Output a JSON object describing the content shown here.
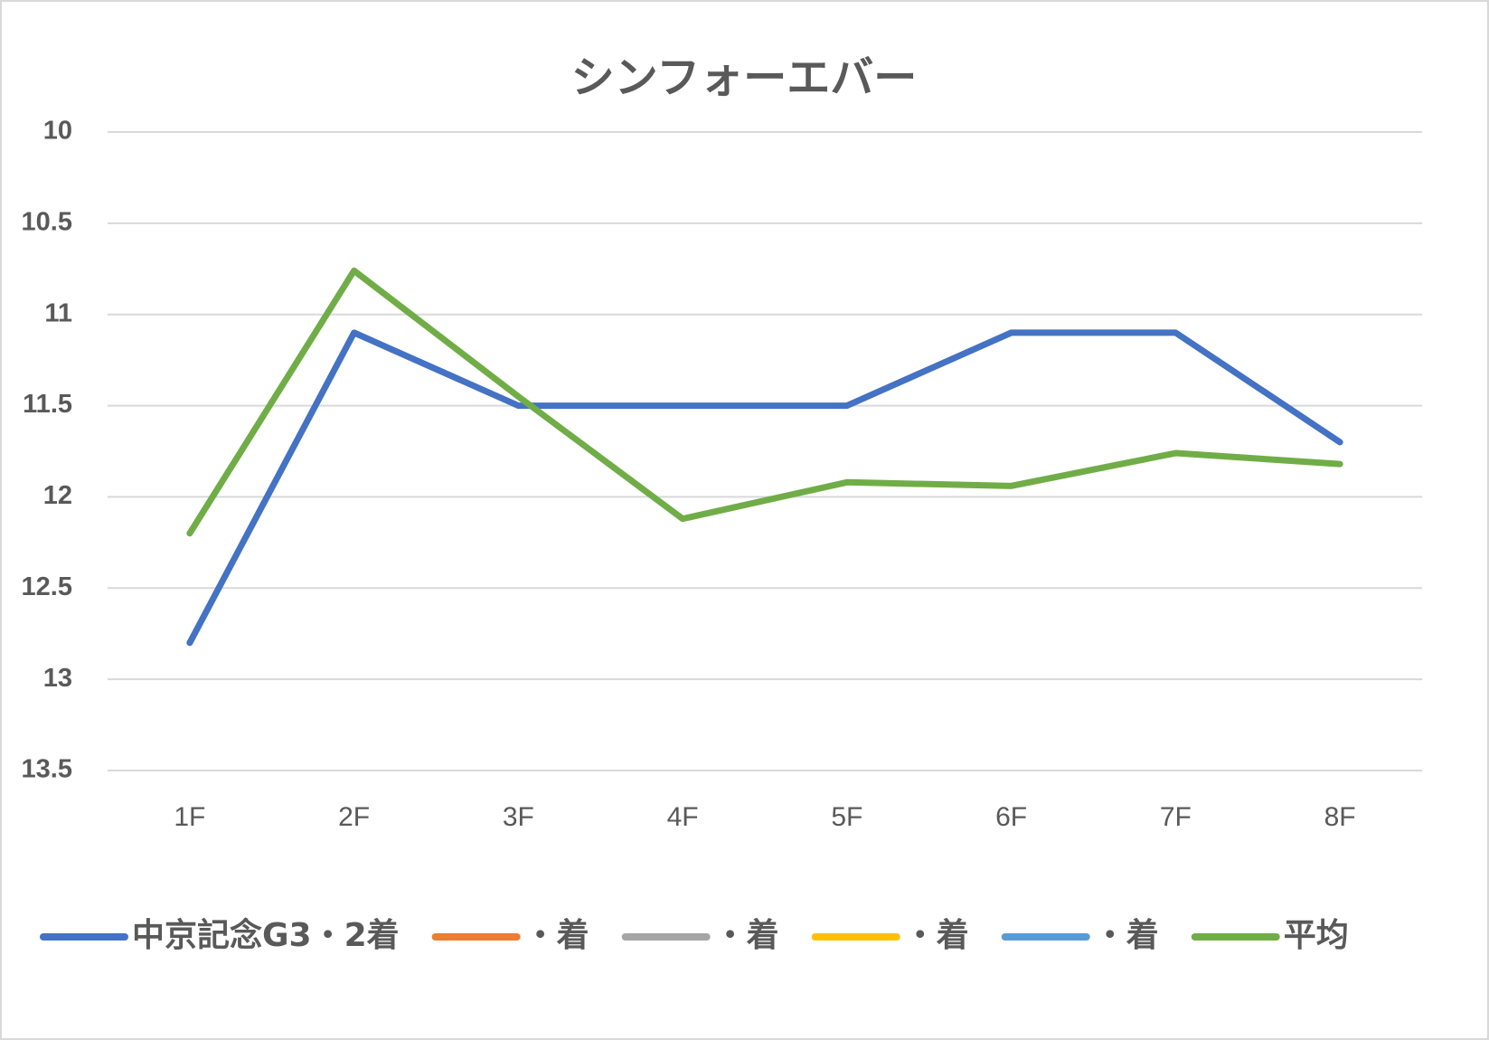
{
  "chart_data": {
    "type": "line",
    "title": "シンフォーエバー",
    "categories": [
      "1F",
      "2F",
      "3F",
      "4F",
      "5F",
      "6F",
      "7F",
      "8F"
    ],
    "series": [
      {
        "name": "中京記念G3・2着",
        "color": "#4472c4",
        "values": [
          12.8,
          11.1,
          11.5,
          11.5,
          11.5,
          11.1,
          11.1,
          11.7
        ]
      },
      {
        "name": "・着",
        "color": "#ed7d31",
        "values": [
          null,
          null,
          null,
          null,
          null,
          null,
          null,
          null
        ]
      },
      {
        "name": "・着",
        "color": "#a5a5a5",
        "values": [
          null,
          null,
          null,
          null,
          null,
          null,
          null,
          null
        ]
      },
      {
        "name": "・着",
        "color": "#ffc000",
        "values": [
          null,
          null,
          null,
          null,
          null,
          null,
          null,
          null
        ]
      },
      {
        "name": "・着",
        "color": "#5b9bd5",
        "values": [
          null,
          null,
          null,
          null,
          null,
          null,
          null,
          null
        ]
      },
      {
        "name": "平均",
        "color": "#70ad47",
        "values": [
          12.2,
          10.76,
          11.45,
          12.12,
          11.92,
          11.94,
          11.76,
          11.82
        ]
      }
    ],
    "ylim": [
      10,
      13.5
    ],
    "yticks": [
      10,
      10.5,
      11,
      11.5,
      12,
      12.5,
      13,
      13.5
    ],
    "y_reversed": true,
    "grid": true,
    "legend": "bottom"
  }
}
